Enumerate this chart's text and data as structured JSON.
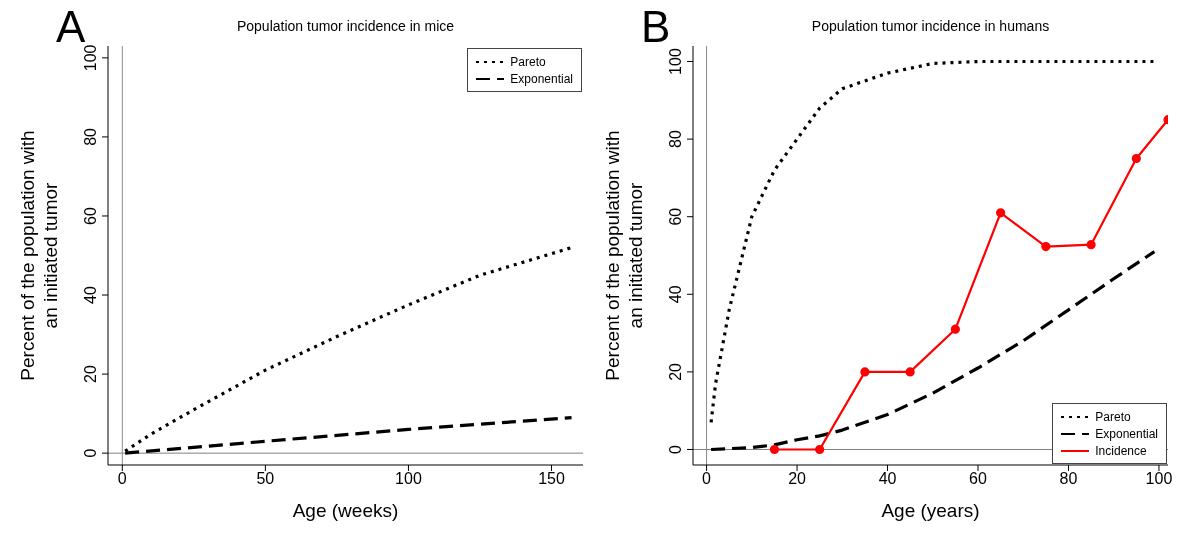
{
  "chart_data": [
    {
      "type": "line",
      "title": "Population tumor incidence in mice",
      "xlabel": "Age (weeks)",
      "ylabel": "Percent of the population with\nan initiated tumor",
      "annotations": [
        "A"
      ],
      "xlim": [
        -5,
        161
      ],
      "xticks": [
        0,
        50,
        100,
        150
      ],
      "ylim": [
        -3,
        103
      ],
      "yticks": [
        0,
        20,
        40,
        60,
        80,
        100
      ],
      "legend": "top right",
      "ref_lines": [
        {
          "axis": "y",
          "value": 0,
          "color": "#808080"
        },
        {
          "axis": "x",
          "value": 0,
          "color": "#8a8a8a"
        }
      ],
      "series": [
        {
          "name": "Pareto",
          "color": "#000000",
          "line_style": "dotted",
          "marker": "none",
          "x": [
            1,
            10,
            25,
            50,
            75,
            100,
            125,
            157
          ],
          "values": [
            0.5,
            4.8,
            11,
            21,
            29.5,
            37.5,
            45,
            52
          ]
        },
        {
          "name": "Exponential",
          "color": "#000000",
          "line_style": "dashed",
          "marker": "none",
          "x": [
            1,
            50,
            100,
            157
          ],
          "values": [
            0,
            3,
            6,
            9
          ]
        }
      ]
    },
    {
      "type": "line",
      "title": "Population tumor incidence in humans",
      "xlabel": "Age (years)",
      "ylabel": "Percent of the population with\nan initiated tumor",
      "annotations": [
        "B"
      ],
      "xlim": [
        -3,
        102
      ],
      "xticks": [
        0,
        20,
        40,
        60,
        80,
        100
      ],
      "ylim": [
        -4,
        104
      ],
      "yticks": [
        0,
        20,
        40,
        60,
        80,
        100
      ],
      "legend": "bottom right",
      "ref_lines": [
        {
          "axis": "y",
          "value": 0,
          "color": "#808080"
        },
        {
          "axis": "x",
          "value": 0,
          "color": "#8a8a8a"
        }
      ],
      "series": [
        {
          "name": "Pareto",
          "color": "#000000",
          "line_style": "dotted",
          "marker": "none",
          "x": [
            1,
            2,
            5,
            10,
            15,
            20,
            25,
            30,
            40,
            50,
            60,
            70,
            80,
            90,
            99
          ],
          "values": [
            7,
            17,
            36,
            60,
            72,
            80,
            88,
            93,
            97,
            99.5,
            100,
            100,
            100,
            100,
            100
          ]
        },
        {
          "name": "Exponential",
          "color": "#000000",
          "line_style": "dashed",
          "marker": "none",
          "x": [
            1,
            10,
            15,
            20,
            25,
            30,
            40,
            50,
            60,
            70,
            80,
            90,
            99
          ],
          "values": [
            0,
            0.5,
            1.2,
            2.5,
            3.5,
            5,
            9,
            14.5,
            21,
            28,
            36,
            44,
            51
          ]
        },
        {
          "name": "Incidence",
          "color": "#ff0000",
          "line_style": "solid",
          "marker": "circle",
          "x": [
            15,
            25,
            35,
            45,
            55,
            65,
            75,
            85,
            95,
            102
          ],
          "values": [
            0,
            0,
            20,
            20,
            31,
            61,
            52.3,
            52.8,
            75,
            85
          ]
        }
      ]
    }
  ]
}
